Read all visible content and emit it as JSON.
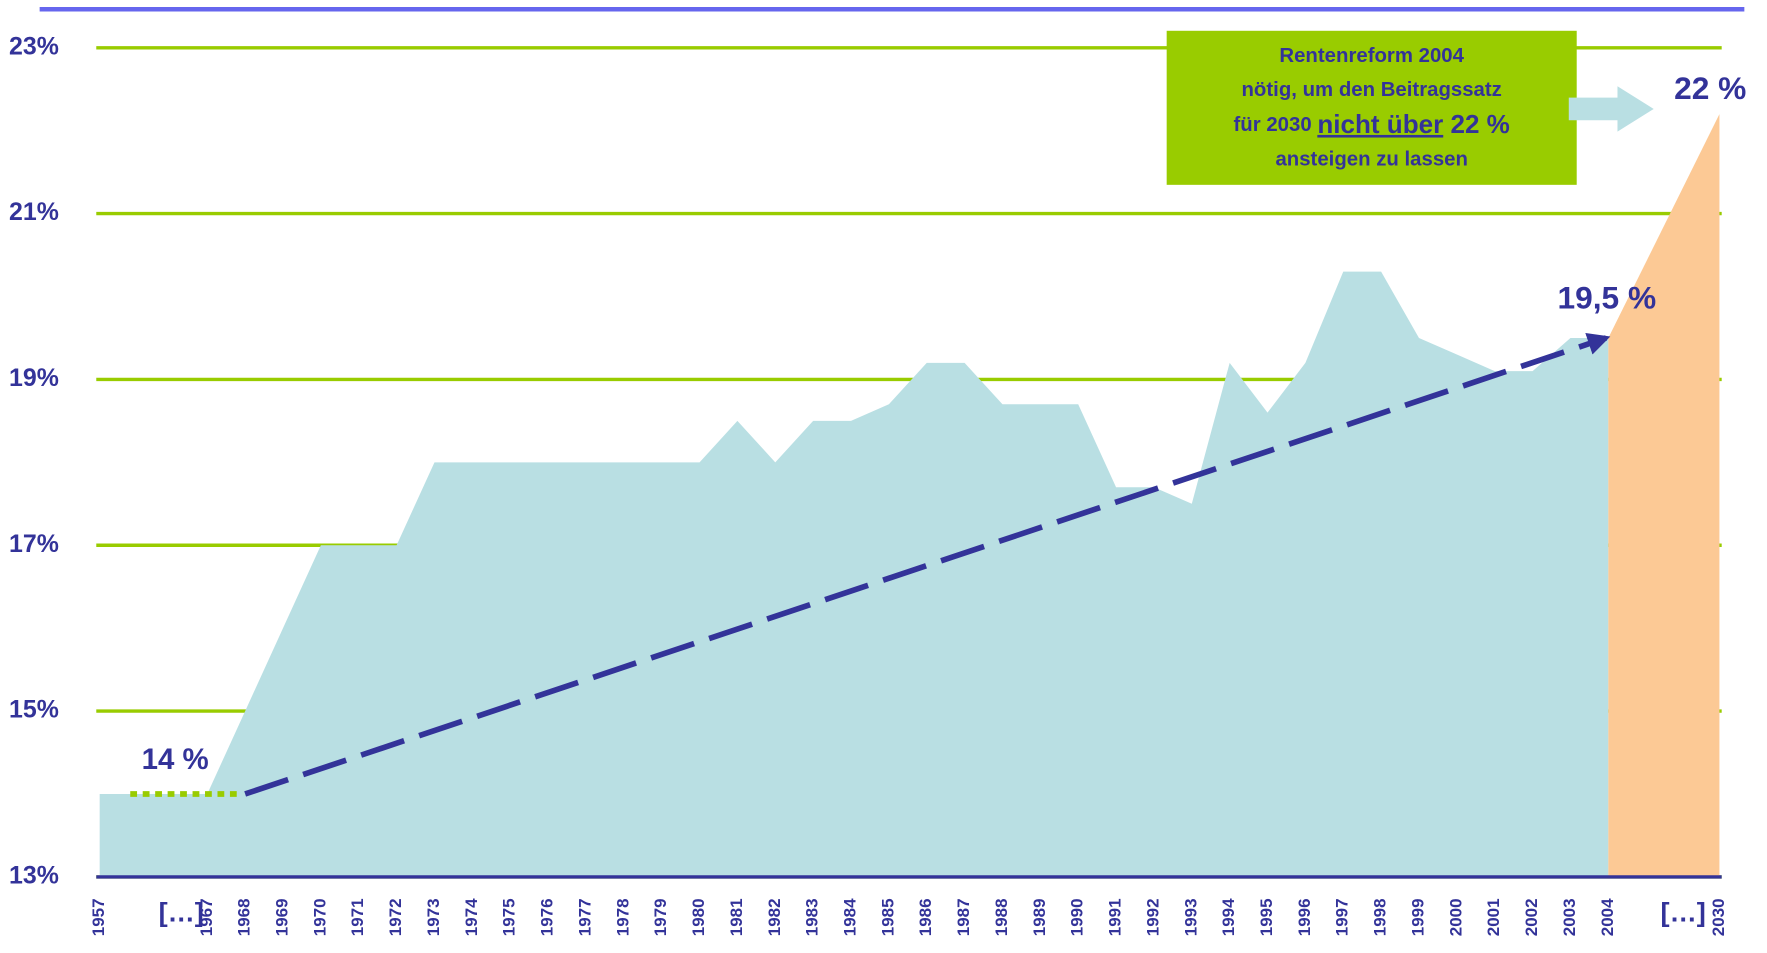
{
  "chart_data": {
    "type": "area",
    "categories": [
      "1957",
      "1967",
      "1968",
      "1969",
      "1970",
      "1971",
      "1972",
      "1973",
      "1974",
      "1975",
      "1976",
      "1977",
      "1978",
      "1979",
      "1980",
      "1981",
      "1982",
      "1983",
      "1984",
      "1985",
      "1986",
      "1987",
      "1988",
      "1989",
      "1990",
      "1991",
      "1992",
      "1993",
      "1994",
      "1995",
      "1996",
      "1997",
      "1998",
      "1999",
      "2000",
      "2001",
      "2002",
      "2003",
      "2004",
      "2030"
    ],
    "series": [
      {
        "color": "#b9dfe3",
        "values": [
          14,
          14,
          15,
          16,
          17,
          17,
          17,
          18,
          18,
          18,
          18,
          18,
          18,
          18,
          18,
          18.5,
          18,
          18.5,
          18.5,
          18.7,
          19.2,
          19.2,
          18.7,
          18.7,
          18.7,
          17.7,
          17.7,
          17.5,
          19.2,
          18.6,
          19.2,
          20.3,
          20.3,
          19.5,
          19.3,
          19.1,
          19.1,
          19.5,
          19.5,
          null
        ]
      },
      {
        "color": "#fcc995",
        "values": [
          null,
          null,
          null,
          null,
          null,
          null,
          null,
          null,
          null,
          null,
          null,
          null,
          null,
          null,
          null,
          null,
          null,
          null,
          null,
          null,
          null,
          null,
          null,
          null,
          null,
          null,
          null,
          null,
          null,
          null,
          null,
          null,
          null,
          null,
          null,
          null,
          null,
          null,
          19.5,
          22.2
        ]
      }
    ],
    "trend": {
      "x": [
        "1968",
        "2004"
      ],
      "values": [
        14,
        19.5
      ],
      "color": "#333399"
    },
    "base_line": {
      "x": [
        "1957",
        "1968"
      ],
      "values": [
        14,
        14
      ],
      "color": "#99cc00"
    },
    "ylim": [
      13,
      23
    ],
    "yticks": [
      {
        "value": 13,
        "label": "13%"
      },
      {
        "value": 15,
        "label": "15%"
      },
      {
        "value": 17,
        "label": "17%"
      },
      {
        "value": 19,
        "label": "19%"
      },
      {
        "value": 21,
        "label": "21%"
      },
      {
        "value": 23,
        "label": "23%"
      }
    ],
    "grid": true,
    "grid_color": "#99cc00",
    "annotations": [
      {
        "text": "14 %"
      },
      {
        "text": "19,5 %"
      },
      {
        "text": "22 %"
      },
      {
        "text": "[…]"
      },
      {
        "text": "[…]"
      }
    ],
    "box": {
      "line1": "Rentenreform 2004",
      "line2": "nötig, um den Beitragssatz",
      "line3_pre": "für 2030 ",
      "line3_emph": "nicht über",
      "line3_post": " 22 %",
      "line4": "ansteigen zu lassen"
    }
  }
}
